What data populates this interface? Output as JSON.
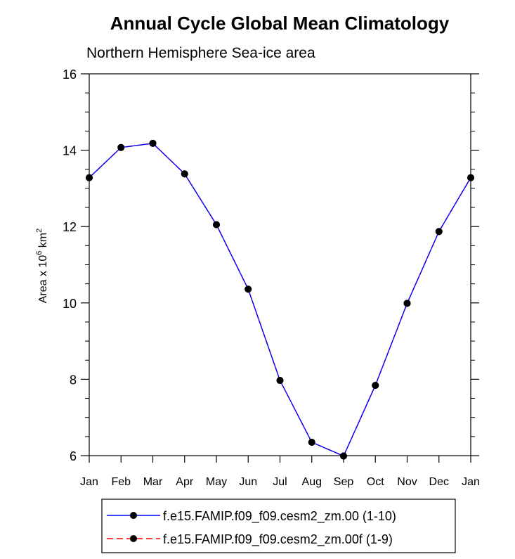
{
  "chart_data": {
    "type": "line",
    "title": "Annual Cycle Global Mean Climatology",
    "subtitle": "Northern Hemisphere Sea-ice area",
    "ylabel_prefix": "Area x 10",
    "ylabel_exp": "6",
    "ylabel_unit": "km",
    "ylabel_unit_exp": "2",
    "xlabel": "",
    "categories": [
      "Jan",
      "Feb",
      "Mar",
      "Apr",
      "May",
      "Jun",
      "Jul",
      "Aug",
      "Sep",
      "Oct",
      "Nov",
      "Dec",
      "Jan"
    ],
    "ylim": [
      6,
      16
    ],
    "yticks": [
      6,
      8,
      10,
      12,
      14,
      16
    ],
    "grid": false,
    "legend_position": "bottom",
    "series": [
      {
        "name": "f.e15.FAMIP.f09_f09.cesm2_zm.00 (1-10)",
        "color": "#0000ff",
        "line_style": "solid",
        "values": [
          13.28,
          14.07,
          14.18,
          13.38,
          12.05,
          10.36,
          7.97,
          6.35,
          5.99,
          7.84,
          9.99,
          11.87,
          13.28
        ]
      },
      {
        "name": "f.e15.FAMIP.f09_f09.cesm2_zm.00f (1-9)",
        "color": "#ff0000",
        "line_style": "dashed",
        "values": [
          13.28,
          14.07,
          14.18,
          13.38,
          12.05,
          10.36,
          7.97,
          6.35,
          5.99,
          7.84,
          9.99,
          11.87,
          13.28
        ]
      }
    ]
  }
}
